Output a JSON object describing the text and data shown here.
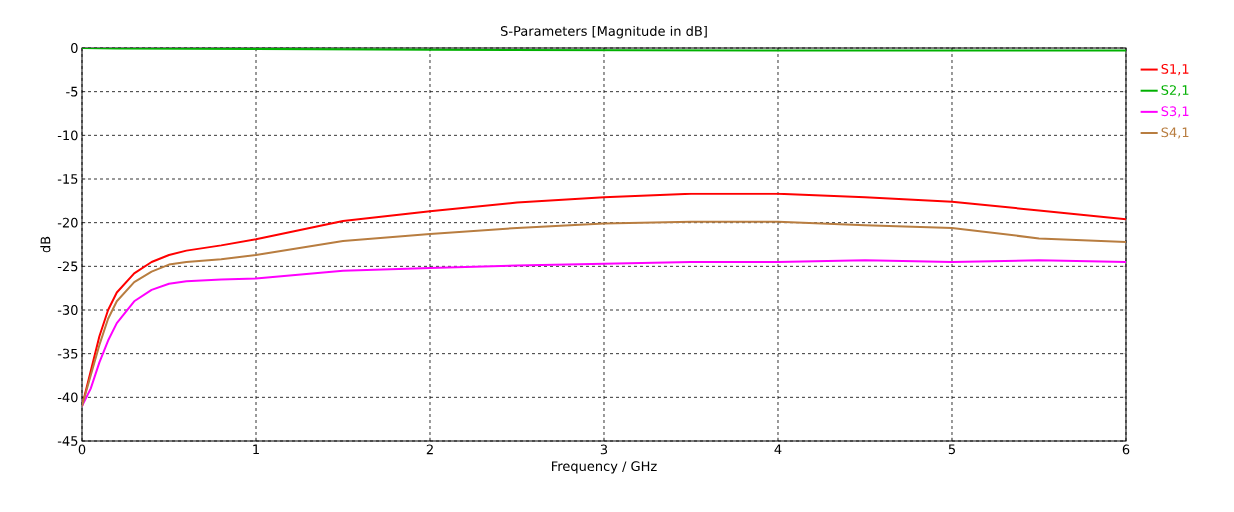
{
  "chart_data": {
    "type": "line",
    "title": "S-Parameters [Magnitude in dB]",
    "xlabel": "Frequency / GHz",
    "ylabel": "dB",
    "x": [
      0,
      0.05,
      0.1,
      0.15,
      0.2,
      0.3,
      0.4,
      0.5,
      0.6,
      0.8,
      1,
      1.5,
      2,
      2.5,
      3,
      3.5,
      4,
      4.5,
      5,
      5.5,
      6
    ],
    "series": [
      {
        "name": "S1,1",
        "color": "#ff0000",
        "values": [
          -41,
          -37,
          -33,
          -30,
          -28,
          -25.8,
          -24.5,
          -23.7,
          -23.2,
          -22.6,
          -21.9,
          -19.8,
          -18.7,
          -17.7,
          -17.1,
          -16.7,
          -16.7,
          -17.1,
          -17.6,
          -18.6,
          -19.6
        ]
      },
      {
        "name": "S2,1",
        "color": "#00b000",
        "x": [
          0,
          0.2,
          1,
          2,
          4,
          6
        ],
        "values": [
          0,
          -0.05,
          -0.1,
          -0.2,
          -0.3,
          -0.3
        ]
      },
      {
        "name": "S3,1",
        "color": "#ff00ff",
        "values": [
          -41,
          -39,
          -36,
          -33.5,
          -31.5,
          -29,
          -27.7,
          -27,
          -26.7,
          -26.5,
          -26.4,
          -25.5,
          -25.2,
          -24.9,
          -24.7,
          -24.5,
          -24.5,
          -24.3,
          -24.5,
          -24.3,
          -24.5
        ]
      },
      {
        "name": "S4,1",
        "color": "#b87d40",
        "values": [
          -41,
          -37.5,
          -34,
          -31,
          -29,
          -26.8,
          -25.6,
          -24.8,
          -24.5,
          -24.2,
          -23.7,
          -22.1,
          -21.3,
          -20.6,
          -20.1,
          -19.9,
          -19.9,
          -20.3,
          -20.6,
          -21.8,
          -22.2
        ]
      }
    ],
    "xlim": [
      0,
      6
    ],
    "ylim": [
      -45,
      0
    ],
    "xticks": [
      0,
      1,
      2,
      3,
      4,
      5,
      6
    ],
    "yticks": [
      -45,
      -40,
      -35,
      -30,
      -25,
      -20,
      -15,
      -10,
      -5,
      0
    ],
    "grid": true,
    "legend": "right",
    "marker": "none",
    "line_style": "solid"
  }
}
